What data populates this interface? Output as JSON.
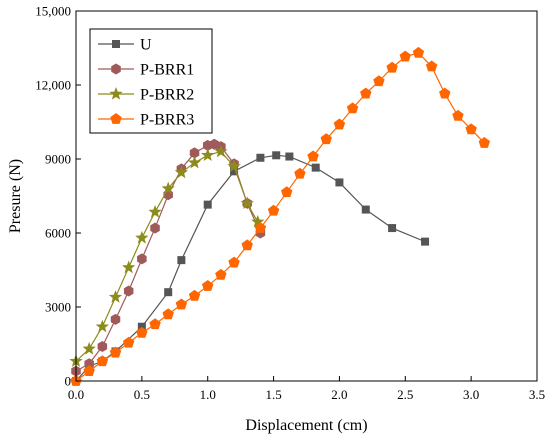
{
  "chart_data": {
    "type": "line",
    "title": "",
    "xlabel": "Displacement (cm)",
    "ylabel": "Presure (N)",
    "xlim": [
      0,
      3.5
    ],
    "ylim": [
      0,
      15000
    ],
    "x_ticks": [
      0,
      0.5,
      1.0,
      1.5,
      2.0,
      2.5,
      3.0,
      3.5
    ],
    "x_tick_labels": [
      "0.0",
      "0.5",
      "1.0",
      "1.5",
      "2.0",
      "2.5",
      "3.0",
      "3.5"
    ],
    "y_ticks": [
      0,
      3000,
      6000,
      9000,
      12000,
      15000
    ],
    "y_tick_labels": [
      "0",
      "3000",
      "6000",
      "9000",
      "12,000",
      "15,000"
    ],
    "grid": false,
    "legend_position": "top-left",
    "series": [
      {
        "name": "U",
        "color": "#555555",
        "marker": "square",
        "x": [
          0,
          0.1,
          0.2,
          0.3,
          0.5,
          0.7,
          0.8,
          1.0,
          1.2,
          1.4,
          1.52,
          1.62,
          1.82,
          2.0,
          2.2,
          2.4,
          2.65
        ],
        "y": [
          0,
          600,
          800,
          1200,
          2200,
          3600,
          4900,
          7150,
          8500,
          9050,
          9150,
          9100,
          8650,
          8050,
          6950,
          6200,
          5650
        ]
      },
      {
        "name": "P-BRR1",
        "color": "#A05A5A",
        "marker": "hexagon",
        "x": [
          0,
          0.1,
          0.2,
          0.3,
          0.4,
          0.5,
          0.6,
          0.7,
          0.8,
          0.9,
          1.0,
          1.05,
          1.1,
          1.2,
          1.3,
          1.4
        ],
        "y": [
          400,
          700,
          1400,
          2500,
          3650,
          4950,
          6200,
          7550,
          8600,
          9250,
          9550,
          9600,
          9500,
          8800,
          7200,
          6000
        ]
      },
      {
        "name": "P-BRR2",
        "color": "#8C8C1C",
        "marker": "star",
        "x": [
          0,
          0.1,
          0.2,
          0.3,
          0.4,
          0.5,
          0.6,
          0.7,
          0.8,
          0.9,
          1.0,
          1.1,
          1.2,
          1.3,
          1.38
        ],
        "y": [
          800,
          1300,
          2200,
          3400,
          4600,
          5800,
          6850,
          7800,
          8450,
          8850,
          9150,
          9300,
          8700,
          7200,
          6450
        ]
      },
      {
        "name": "P-BRR3",
        "color": "#FF6600",
        "marker": "pentagon",
        "x": [
          0,
          0.1,
          0.2,
          0.3,
          0.4,
          0.5,
          0.6,
          0.7,
          0.8,
          0.9,
          1.0,
          1.1,
          1.2,
          1.3,
          1.4,
          1.5,
          1.6,
          1.7,
          1.8,
          1.9,
          2.0,
          2.1,
          2.2,
          2.3,
          2.4,
          2.5,
          2.6,
          2.7,
          2.8,
          2.9,
          3.0,
          3.1
        ],
        "y": [
          0,
          400,
          800,
          1150,
          1550,
          1950,
          2300,
          2700,
          3100,
          3450,
          3850,
          4300,
          4800,
          5500,
          6200,
          6900,
          7650,
          8400,
          9100,
          9800,
          10400,
          11050,
          11650,
          12150,
          12700,
          13150,
          13300,
          12750,
          11650,
          10750,
          10200,
          9650
        ]
      }
    ]
  }
}
